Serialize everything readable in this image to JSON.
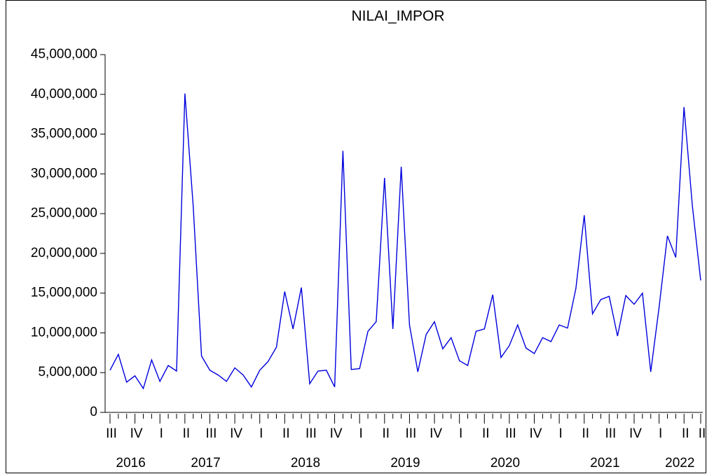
{
  "chart_data": {
    "type": "line",
    "title": "NILAI_IMPOR",
    "color": "#0000dd",
    "categories": [
      "III",
      null,
      null,
      "IV",
      null,
      null,
      "I",
      null,
      null,
      "II",
      null,
      null,
      "III",
      null,
      null,
      "IV",
      null,
      null,
      "I",
      null,
      null,
      "II",
      null,
      null,
      "III",
      null,
      null,
      "IV",
      null,
      null,
      "I",
      null,
      null,
      "II",
      null,
      null,
      "III",
      null,
      null,
      "IV",
      null,
      null,
      "I",
      null,
      null,
      "II",
      null,
      null,
      "III",
      null,
      null,
      "IV",
      null,
      null,
      "I",
      null,
      null,
      "II",
      null,
      null,
      "III",
      null,
      null,
      "IV",
      null,
      null,
      "I",
      null,
      null,
      "II",
      null,
      "II"
    ],
    "years": [
      "2016",
      "2017",
      "2018",
      "2019",
      "2020",
      "2021",
      "2022"
    ],
    "values": [
      5300000,
      7300000,
      3800000,
      4600000,
      3000000,
      6600000,
      3900000,
      5900000,
      5200000,
      40100000,
      26000000,
      7100000,
      5300000,
      4700000,
      3900000,
      5600000,
      4700000,
      3200000,
      5300000,
      6400000,
      8200000,
      15200000,
      10500000,
      15700000,
      3600000,
      5200000,
      5300000,
      3200000,
      32900000,
      5400000,
      5500000,
      10200000,
      11400000,
      29500000,
      10500000,
      30900000,
      11000000,
      5100000,
      9800000,
      11400000,
      8000000,
      9400000,
      6500000,
      5900000,
      10200000,
      10500000,
      14800000,
      6900000,
      8400000,
      11000000,
      8100000,
      7400000,
      9400000,
      8900000,
      11000000,
      10600000,
      15600000,
      24800000,
      12400000,
      14200000,
      14600000,
      9600000,
      14700000,
      13600000,
      15000000,
      5100000,
      13200000,
      22200000,
      19500000,
      38400000,
      26000000,
      16600000
    ],
    "ylim": [
      0,
      45000000
    ],
    "yticks": [
      {
        "value": 0,
        "label": "0"
      },
      {
        "value": 5000000,
        "label": "5,000,000"
      },
      {
        "value": 10000000,
        "label": "10,000,000"
      },
      {
        "value": 15000000,
        "label": "15,000,000"
      },
      {
        "value": 20000000,
        "label": "20,000,000"
      },
      {
        "value": 25000000,
        "label": "25,000,000"
      },
      {
        "value": 30000000,
        "label": "30,000,000"
      },
      {
        "value": 35000000,
        "label": "35,000,000"
      },
      {
        "value": 40000000,
        "label": "40,000,000"
      },
      {
        "value": 45000000,
        "label": "45,000,000"
      }
    ]
  }
}
